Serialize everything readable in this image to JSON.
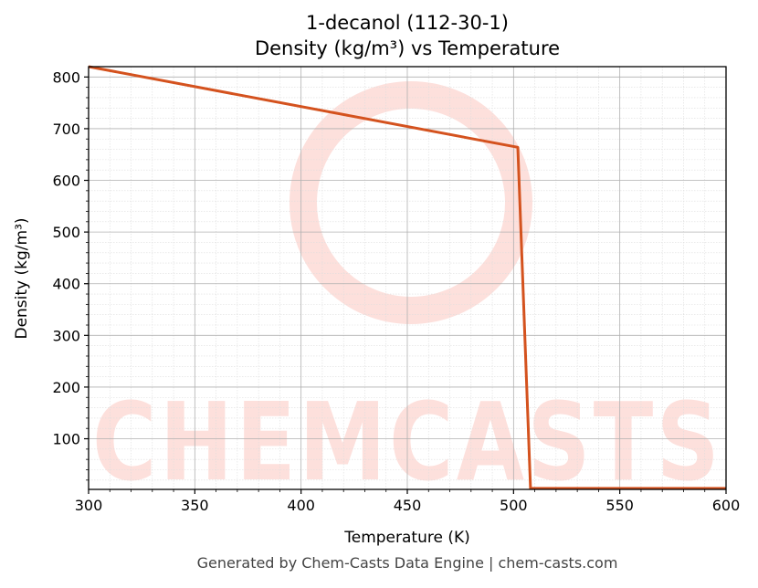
{
  "chart_title_line1": "1-decanol (112-30-1)",
  "chart_title_line2": "Density (kg/m³) vs Temperature",
  "footer": "Generated by Chem-Casts Data Engine | chem-casts.com",
  "watermark": "CHEMCASTS",
  "colors": {
    "line": "#d4521e",
    "watermark": "#fde0dc",
    "grid_major": "#b0b0b0",
    "grid_minor": "#dddddd"
  },
  "chart_data": {
    "type": "line",
    "title": "1-decanol (112-30-1)\nDensity (kg/m³) vs Temperature",
    "xlabel": "Temperature (K)",
    "ylabel": "Density (kg/m³)",
    "xlim": [
      300,
      600
    ],
    "ylim": [
      2,
      820
    ],
    "xticks": [
      300,
      350,
      400,
      450,
      500,
      550,
      600
    ],
    "yticks": [
      100,
      200,
      300,
      400,
      500,
      600,
      700,
      800
    ],
    "grid": true,
    "legend": "none",
    "series": [
      {
        "x": [
          300,
          502,
          508,
          600
        ],
        "y": [
          820,
          664,
          4,
          4
        ]
      }
    ]
  }
}
